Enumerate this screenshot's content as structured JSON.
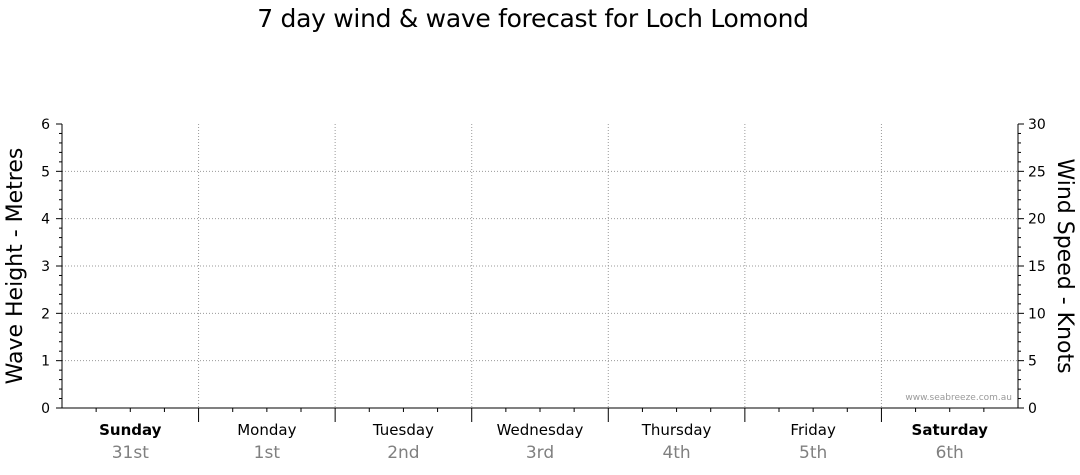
{
  "chart_data": {
    "type": "line",
    "title": "7 day wind & wave forecast for Loch Lomond",
    "y_left": {
      "label": "Wave Height - Metres",
      "range": [
        0,
        6
      ],
      "ticks": [
        "0",
        "1",
        "2",
        "3",
        "4",
        "5",
        "6"
      ]
    },
    "y_right": {
      "label": "Wind Speed - Knots",
      "range": [
        0,
        30
      ],
      "ticks": [
        "0",
        "5",
        "10",
        "15",
        "20",
        "25",
        "30"
      ]
    },
    "days": [
      {
        "name": "Sunday",
        "date": "31st",
        "weekend": true
      },
      {
        "name": "Monday",
        "date": "1st",
        "weekend": false
      },
      {
        "name": "Tuesday",
        "date": "2nd",
        "weekend": false
      },
      {
        "name": "Wednesday",
        "date": "3rd",
        "weekend": false
      },
      {
        "name": "Thursday",
        "date": "4th",
        "weekend": false
      },
      {
        "name": "Friday",
        "date": "5th",
        "weekend": false
      },
      {
        "name": "Saturday",
        "date": "6th",
        "weekend": true
      }
    ],
    "series": [],
    "grid": true
  },
  "credit": "www.seabreeze.com.au"
}
